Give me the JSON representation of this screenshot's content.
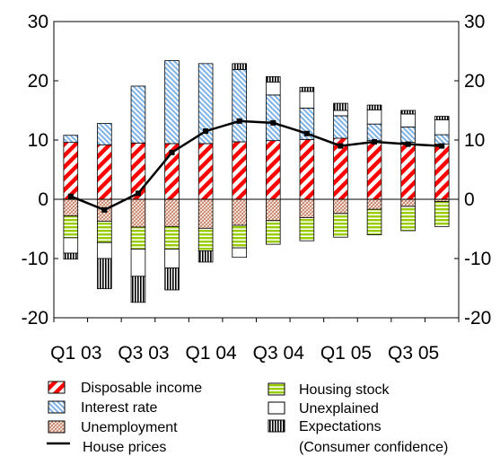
{
  "chart_data": {
    "type": "bar",
    "stacked": true,
    "categories": [
      "Q1 03",
      "Q2 03",
      "Q3 03",
      "Q4 03",
      "Q1 04",
      "Q2 04",
      "Q3 04",
      "Q4 04",
      "Q1 05",
      "Q2 05",
      "Q3 05",
      "Q4 05"
    ],
    "x_tick_labels": [
      {
        "index": 0,
        "label": "Q1 03"
      },
      {
        "index": 2,
        "label": "Q3 03"
      },
      {
        "index": 4,
        "label": "Q1 04"
      },
      {
        "index": 6,
        "label": "Q3 04"
      },
      {
        "index": 8,
        "label": "Q1 05"
      },
      {
        "index": 10,
        "label": "Q3 05"
      }
    ],
    "y_ticks": [
      -20,
      -10,
      0,
      10,
      20,
      30
    ],
    "y_tick_labels": [
      "-20",
      "-10",
      "0",
      "10",
      "20",
      "30"
    ],
    "ylim": [
      -20,
      30
    ],
    "grid": false,
    "legend_position": "bottom",
    "series": [
      {
        "name": "Disposable income",
        "key": "disposable",
        "pattern": "red-diagonal",
        "color": "#ff0000",
        "values": [
          9.6,
          9.2,
          9.5,
          9.4,
          9.4,
          9.7,
          9.9,
          10.1,
          10.3,
          9.9,
          9.6,
          9.3
        ]
      },
      {
        "name": "Interest rate",
        "key": "interest",
        "pattern": "blue-diagonal",
        "color": "#5b9bd5",
        "values": [
          1.2,
          3.6,
          9.6,
          14.0,
          13.5,
          12.2,
          7.7,
          5.3,
          3.8,
          2.8,
          2.6,
          1.6
        ]
      },
      {
        "name": "Unemployment",
        "key": "unemployment",
        "pattern": "brown-crosshatch",
        "color": "#c8866b",
        "values": [
          -2.8,
          -3.7,
          -4.7,
          -4.6,
          -4.9,
          -4.4,
          -3.6,
          -3.1,
          -2.4,
          -1.7,
          -1.2,
          -0.4
        ]
      },
      {
        "name": "Housing stock",
        "key": "housing",
        "pattern": "green-horizontal",
        "color": "#99cc00",
        "values": [
          -3.7,
          -3.6,
          -3.7,
          -3.8,
          -3.8,
          -3.8,
          -4.0,
          -3.9,
          -4.0,
          -4.3,
          -4.1,
          -4.2
        ]
      },
      {
        "name": "Unexplained",
        "key": "unexplained",
        "pattern": "white",
        "color": "#ffffff",
        "values": [
          -2.6,
          -2.7,
          -4.6,
          -3.2,
          0.0,
          -1.6,
          2.2,
          2.8,
          0.9,
          2.4,
          2.2,
          2.5
        ]
      },
      {
        "name": "Expectations\n(Consumer confidence)",
        "key": "expectations",
        "pattern": "vertical-lines",
        "color": "#000000",
        "values": [
          -1.0,
          -5.1,
          -4.4,
          -3.7,
          -1.9,
          1.0,
          0.9,
          0.7,
          1.2,
          0.8,
          0.6,
          0.6
        ]
      },
      {
        "name": "House prices",
        "key": "house_prices",
        "type": "line",
        "color": "#000000",
        "values": [
          0.5,
          -1.8,
          1.0,
          7.9,
          11.5,
          13.2,
          12.9,
          11.1,
          9.0,
          9.7,
          9.3,
          9.0
        ]
      }
    ]
  },
  "legend": {
    "disposable": "Disposable income",
    "interest": "Interest rate",
    "unemployment": "Unemployment",
    "house_prices": "House prices",
    "housing": "Housing stock",
    "unexplained": "Unexplained",
    "expectations_line1": "Expectations",
    "expectations_line2": "(Consumer confidence)"
  }
}
